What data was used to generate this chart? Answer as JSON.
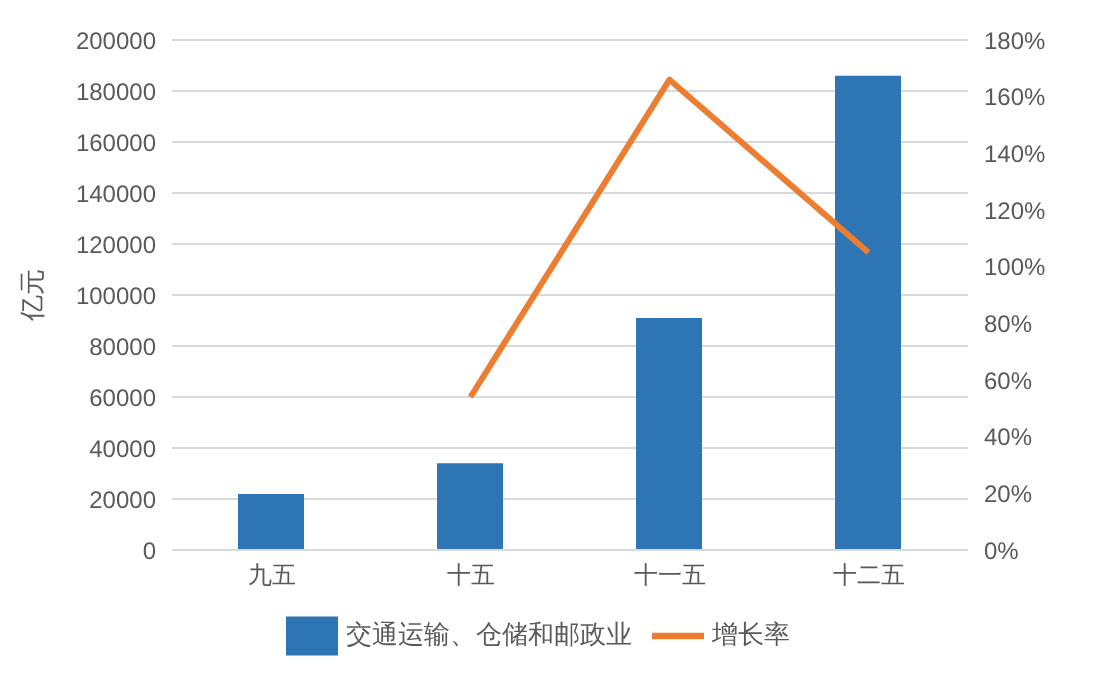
{
  "chart_data": {
    "type": "bar",
    "ylabel": "亿元",
    "categories": [
      "九五",
      "十五",
      "十一五",
      "十二五"
    ],
    "series": [
      {
        "name": "交通运输、仓储和邮政业",
        "color": "#2e75b6",
        "values": [
          22000,
          34000,
          91000,
          186000
        ]
      },
      {
        "name": "增长率",
        "type": "line",
        "axis": "y2",
        "color": "#ed7d31",
        "values": [
          null,
          54,
          166,
          105
        ]
      }
    ],
    "ylim": [
      0,
      200000
    ],
    "yticks": [
      0,
      20000,
      40000,
      60000,
      80000,
      100000,
      120000,
      140000,
      160000,
      180000,
      200000
    ],
    "y2lim": [
      0,
      180
    ],
    "y2ticks": [
      {
        "value": 0,
        "label": "0%"
      },
      {
        "value": 20,
        "label": "20%"
      },
      {
        "value": 40,
        "label": "40%"
      },
      {
        "value": 60,
        "label": "60%"
      },
      {
        "value": 80,
        "label": "80%"
      },
      {
        "value": 100,
        "label": "100%"
      },
      {
        "value": 120,
        "label": "120%"
      },
      {
        "value": 140,
        "label": "140%"
      },
      {
        "value": 160,
        "label": "160%"
      },
      {
        "value": 180,
        "label": "180%"
      }
    ],
    "grid": "y",
    "legend": "bottom",
    "marker": "none"
  }
}
